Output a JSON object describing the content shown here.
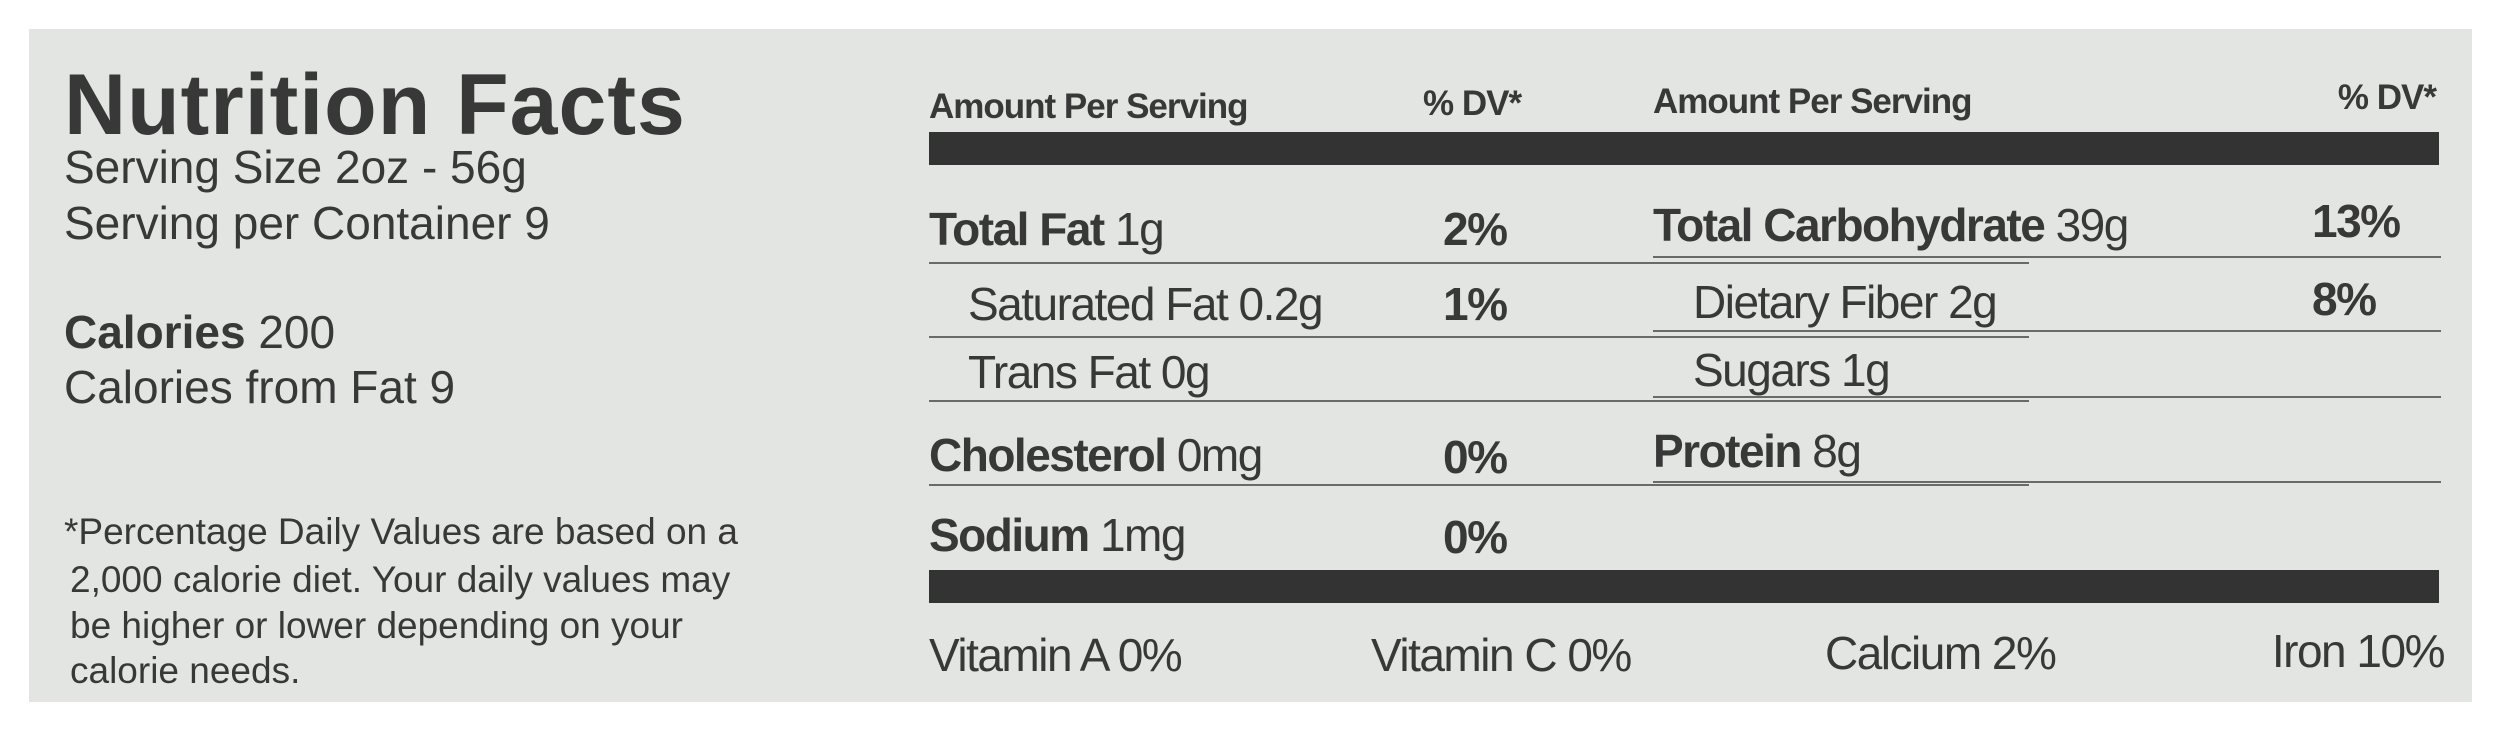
{
  "title": "Nutrition Facts",
  "serving_size": "Serving Size 2oz - 56g",
  "servings_per_container": "Serving per Container 9",
  "calories": {
    "label": "Calories",
    "value": "200"
  },
  "calories_from_fat": "Calories from Fat 9",
  "footnote": [
    "*Percentage Daily Values are based on a",
    "2,000 calorie diet. Your daily values may",
    "be higher or lower depending on your",
    "calorie needs."
  ],
  "header": {
    "amount": "Amount Per Serving",
    "dv": "% DV*"
  },
  "left_rows": [
    {
      "label": "Total Fat",
      "amount": "1g",
      "dv": "2%"
    },
    {
      "label": "Saturated Fat",
      "amount": "0.2g",
      "dv": "1%"
    },
    {
      "label": "Trans Fat",
      "amount": "0g",
      "dv": ""
    },
    {
      "label": "Cholesterol",
      "amount": "0mg",
      "dv": "0%"
    },
    {
      "label": "Sodium",
      "amount": "1mg",
      "dv": "0%"
    }
  ],
  "right_rows": [
    {
      "label": "Total Carbohydrate",
      "amount": "39g",
      "dv": "13%"
    },
    {
      "label": "Dietary Fiber",
      "amount": "2g",
      "dv": "8%"
    },
    {
      "label": "Sugars",
      "amount": "1g",
      "dv": ""
    },
    {
      "label": "Protein",
      "amount": "8g",
      "dv": ""
    }
  ],
  "vitamins": [
    "Vitamin A 0%",
    "Vitamin C 0%",
    "Calcium 2%",
    "Iron 10%"
  ]
}
